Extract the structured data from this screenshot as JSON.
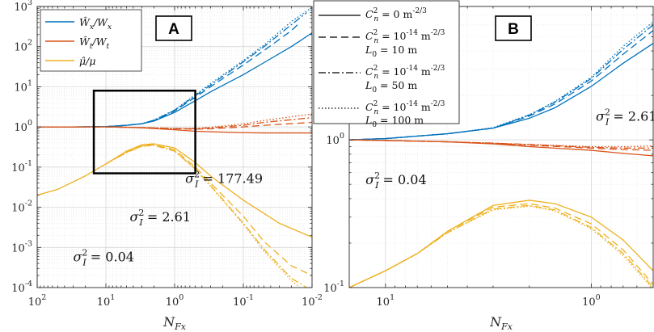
{
  "chart_data": [
    {
      "type": "line",
      "panel_label": "A",
      "xlabel": "N_Fx",
      "xlabel_main": "N",
      "xlabel_sub": "Fx",
      "x_scale": "log",
      "x_reversed": true,
      "xlim": [
        100,
        0.01
      ],
      "y_scale": "log",
      "ylim": [
        0.0001,
        1000
      ],
      "grid": true,
      "x_ticks": [
        {
          "value": 100,
          "base": "10",
          "exp": "2"
        },
        {
          "value": 10,
          "base": "10",
          "exp": "1"
        },
        {
          "value": 1,
          "base": "10",
          "exp": "0"
        },
        {
          "value": 0.1,
          "base": "10",
          "exp": "-1"
        },
        {
          "value": 0.01,
          "base": "10",
          "exp": "-2"
        }
      ],
      "y_ticks": [
        {
          "value": 0.0001,
          "base": "10",
          "exp": "-4"
        },
        {
          "value": 0.001,
          "base": "10",
          "exp": "-3"
        },
        {
          "value": 0.01,
          "base": "10",
          "exp": "-2"
        },
        {
          "value": 0.1,
          "base": "10",
          "exp": "-1"
        },
        {
          "value": 1,
          "base": "10",
          "exp": "0"
        },
        {
          "value": 10,
          "base": "10",
          "exp": "1"
        },
        {
          "value": 100,
          "base": "10",
          "exp": "2"
        },
        {
          "value": 1000,
          "base": "10",
          "exp": "3"
        }
      ],
      "legend": {
        "placement": "top-left",
        "entries": [
          {
            "main": "Ŵ",
            "sub": "x",
            "tail": "/W",
            "tail_sub": "x",
            "color": "#0072BD"
          },
          {
            "main": "Ŵ",
            "sub": "t",
            "tail": "/W",
            "tail_sub": "t",
            "color": "#D95319"
          },
          {
            "main": "μ̂/μ",
            "sub": "",
            "tail": "",
            "tail_sub": "",
            "color": "#EDB120"
          }
        ]
      },
      "annotations": [
        {
          "text": "= 177.49",
          "sym": "σ",
          "sub": "I",
          "sup": "2",
          "x": 0.7,
          "y": 0.04
        },
        {
          "text": "= 2.61",
          "sym": "σ",
          "sub": "I",
          "sup": "2",
          "x": 4.5,
          "y": 0.0045
        },
        {
          "text": "= 0.04",
          "sym": "σ",
          "sub": "I",
          "sup": "2",
          "x": 30,
          "y": 0.00045
        }
      ],
      "zoom_box": {
        "x": [
          15,
          0.5
        ],
        "y": [
          0.07,
          8
        ]
      },
      "series": [
        {
          "name": "Ŵx/Wx, C_n²=0",
          "color": "#0072BD",
          "dash": "solid",
          "x": [
            100,
            30,
            10,
            5,
            3,
            2,
            1,
            0.5,
            0.3,
            0.1,
            0.05,
            0.02,
            0.01
          ],
          "y": [
            1.0,
            1.0,
            1.02,
            1.1,
            1.2,
            1.4,
            2.3,
            4.5,
            7.5,
            20,
            40,
            100,
            220
          ]
        },
        {
          "name": "Ŵx/Wx, C_n²=1e-14, L0=10 m",
          "color": "#0072BD",
          "dash": "dashed",
          "x": [
            100,
            30,
            10,
            5,
            3,
            2,
            1,
            0.5,
            0.3,
            0.1,
            0.05,
            0.02,
            0.015
          ],
          "y": [
            1.0,
            1.0,
            1.02,
            1.1,
            1.2,
            1.45,
            2.5,
            5.5,
            10,
            35,
            80,
            250,
            400
          ]
        },
        {
          "name": "Ŵx/Wx, C_n²=1e-14, L0=50 m",
          "color": "#0072BD",
          "dash": "dashdot",
          "x": [
            100,
            30,
            10,
            5,
            3,
            2,
            1,
            0.5,
            0.3,
            0.1,
            0.05,
            0.02,
            0.012
          ],
          "y": [
            1.0,
            1.0,
            1.02,
            1.1,
            1.2,
            1.47,
            2.6,
            6.0,
            11,
            42,
            100,
            350,
            700
          ]
        },
        {
          "name": "Ŵx/Wx, C_n²=1e-14, L0=100 m",
          "color": "#0072BD",
          "dash": "dotted",
          "x": [
            100,
            30,
            10,
            5,
            3,
            2,
            1,
            0.5,
            0.3,
            0.1,
            0.05,
            0.02,
            0.01
          ],
          "y": [
            1.0,
            1.0,
            1.02,
            1.1,
            1.21,
            1.48,
            2.65,
            6.3,
            12,
            45,
            110,
            420,
            950
          ]
        },
        {
          "name": "Ŵt/Wt, C_n²=0",
          "color": "#D95319",
          "dash": "solid",
          "x": [
            100,
            10,
            5,
            3,
            1,
            0.5,
            0.1,
            0.05,
            0.01
          ],
          "y": [
            1.0,
            1.0,
            0.98,
            0.95,
            0.85,
            0.78,
            0.72,
            0.71,
            0.71
          ]
        },
        {
          "name": "Ŵt/Wt, C_n²=1e-14, L0=10 m",
          "color": "#D95319",
          "dash": "dashed",
          "x": [
            100,
            10,
            5,
            3,
            1,
            0.5,
            0.3,
            0.1,
            0.05,
            0.01
          ],
          "y": [
            1.0,
            1.0,
            0.98,
            0.96,
            0.9,
            0.88,
            0.9,
            1.0,
            1.1,
            1.3
          ]
        },
        {
          "name": "Ŵt/Wt, C_n²=1e-14, L0=50 m",
          "color": "#D95319",
          "dash": "dashdot",
          "x": [
            100,
            10,
            5,
            3,
            1,
            0.5,
            0.3,
            0.1,
            0.05,
            0.01
          ],
          "y": [
            1.0,
            1.0,
            0.98,
            0.96,
            0.91,
            0.9,
            0.95,
            1.1,
            1.3,
            1.7
          ]
        },
        {
          "name": "Ŵt/Wt, C_n²=1e-14, L0=100 m",
          "color": "#D95319",
          "dash": "dotted",
          "x": [
            100,
            10,
            5,
            3,
            1,
            0.5,
            0.3,
            0.1,
            0.05,
            0.01
          ],
          "y": [
            1.0,
            1.0,
            0.98,
            0.96,
            0.92,
            0.92,
            0.98,
            1.2,
            1.45,
            2.1
          ]
        },
        {
          "name": "μ̂/μ, C_n²=0",
          "color": "#EDB120",
          "dash": "solid",
          "x": [
            100,
            50,
            20,
            10,
            5,
            3,
            2,
            1,
            0.5,
            0.3,
            0.1,
            0.03,
            0.01
          ],
          "y": [
            0.02,
            0.028,
            0.06,
            0.12,
            0.25,
            0.36,
            0.38,
            0.3,
            0.13,
            0.06,
            0.015,
            0.004,
            0.0018
          ]
        },
        {
          "name": "μ̂/μ, C_n²=1e-14, L0=10 m",
          "color": "#EDB120",
          "dash": "dashed",
          "x": [
            10,
            5,
            3,
            2,
            1,
            0.5,
            0.3,
            0.1,
            0.05,
            0.02,
            0.01
          ],
          "y": [
            0.12,
            0.24,
            0.34,
            0.36,
            0.27,
            0.1,
            0.04,
            0.006,
            0.0014,
            0.00035,
            0.0002
          ]
        },
        {
          "name": "μ̂/μ, C_n²=1e-14, L0=50 m",
          "color": "#EDB120",
          "dash": "dashdot",
          "x": [
            10,
            5,
            3,
            2,
            1,
            0.5,
            0.3,
            0.1,
            0.05,
            0.02,
            0.012
          ],
          "y": [
            0.12,
            0.23,
            0.33,
            0.35,
            0.25,
            0.09,
            0.035,
            0.004,
            0.0009,
            0.00017,
            0.0001
          ]
        },
        {
          "name": "μ̂/μ, C_n²=1e-14, L0=100 m",
          "color": "#EDB120",
          "dash": "dotted",
          "x": [
            10,
            5,
            3,
            2,
            1,
            0.5,
            0.3,
            0.1,
            0.05,
            0.02,
            0.015
          ],
          "y": [
            0.12,
            0.23,
            0.33,
            0.35,
            0.25,
            0.088,
            0.033,
            0.0038,
            0.0008,
            0.00015,
            0.0001
          ]
        }
      ]
    },
    {
      "type": "line",
      "panel_label": "B",
      "xlabel": "N_Fx",
      "xlabel_main": "N",
      "xlabel_sub": "Fx",
      "x_scale": "log",
      "x_reversed": true,
      "xlim": [
        15,
        0.5
      ],
      "y_scale": "log",
      "ylim": [
        0.1,
        8
      ],
      "grid": true,
      "x_ticks": [
        {
          "value": 10,
          "base": "10",
          "exp": "1"
        },
        {
          "value": 1,
          "base": "10",
          "exp": "0"
        }
      ],
      "y_ticks": [
        {
          "value": 0.1,
          "base": "10",
          "exp": "-1"
        },
        {
          "value": 1,
          "base": "10",
          "exp": "0"
        }
      ],
      "legend": {
        "placement": "top-left",
        "entries": [
          {
            "label": "= 0 m",
            "lexp": "-2/3",
            "line2": "",
            "dash": "solid"
          },
          {
            "label": "= 10",
            "lexp": "-14",
            "unit": " m",
            "uexp": "-2/3",
            "line2": "= 10 m",
            "dash": "dashed"
          },
          {
            "label": "= 10",
            "lexp": "-14",
            "unit": " m",
            "uexp": "-2/3",
            "line2": "= 50 m",
            "dash": "dashdot"
          },
          {
            "label": "= 10",
            "lexp": "-14",
            "unit": " m",
            "uexp": "-2/3",
            "line2": "= 100 m",
            "dash": "dotted"
          }
        ]
      },
      "annotations": [
        {
          "text": "= 2.61",
          "sym": "σ",
          "sub": "I",
          "sup": "2",
          "x": 0.95,
          "y": 1.35
        },
        {
          "text": "= 0.04",
          "sym": "σ",
          "sub": "I",
          "sup": "2",
          "x": 12.5,
          "y": 0.5
        }
      ],
      "series": [
        {
          "name": "Ŵx/Wx, C_n²=0",
          "color": "#0072BD",
          "dash": "solid",
          "x": [
            15,
            10,
            5,
            3,
            2,
            1.5,
            1,
            0.7,
            0.5
          ],
          "y": [
            1.0,
            1.02,
            1.1,
            1.2,
            1.4,
            1.65,
            2.3,
            3.3,
            4.5
          ]
        },
        {
          "name": "Ŵx/Wx, L0=10 m",
          "color": "#0072BD",
          "dash": "dashed",
          "x": [
            15,
            10,
            5,
            3,
            2,
            1.5,
            1,
            0.7,
            0.5
          ],
          "y": [
            1.0,
            1.02,
            1.1,
            1.2,
            1.45,
            1.75,
            2.5,
            3.8,
            5.5
          ]
        },
        {
          "name": "Ŵx/Wx, L0=50 m",
          "color": "#0072BD",
          "dash": "dashdot",
          "x": [
            15,
            10,
            5,
            3,
            2,
            1.5,
            1,
            0.7,
            0.5
          ],
          "y": [
            1.0,
            1.02,
            1.1,
            1.2,
            1.47,
            1.8,
            2.6,
            4.1,
            6.0
          ]
        },
        {
          "name": "Ŵx/Wx, L0=100 m",
          "color": "#0072BD",
          "dash": "dotted",
          "x": [
            15,
            10,
            5,
            3,
            2,
            1.5,
            1,
            0.7,
            0.5
          ],
          "y": [
            1.0,
            1.02,
            1.1,
            1.21,
            1.48,
            1.82,
            2.65,
            4.3,
            6.3
          ]
        },
        {
          "name": "Ŵt/Wt, C_n²=0",
          "color": "#D95319",
          "dash": "solid",
          "x": [
            15,
            10,
            5,
            3,
            2,
            1,
            0.7,
            0.5
          ],
          "y": [
            1.0,
            0.99,
            0.97,
            0.94,
            0.9,
            0.85,
            0.81,
            0.78
          ]
        },
        {
          "name": "Ŵt/Wt, L0=10 m",
          "color": "#D95319",
          "dash": "dashed",
          "x": [
            15,
            10,
            5,
            3,
            2,
            1,
            0.7,
            0.5
          ],
          "y": [
            1.0,
            0.99,
            0.97,
            0.95,
            0.92,
            0.88,
            0.86,
            0.85
          ]
        },
        {
          "name": "Ŵt/Wt, L0=50 m",
          "color": "#D95319",
          "dash": "dashdot",
          "x": [
            15,
            10,
            5,
            3,
            2,
            1,
            0.7,
            0.5
          ],
          "y": [
            1.0,
            0.99,
            0.97,
            0.95,
            0.93,
            0.89,
            0.88,
            0.88
          ]
        },
        {
          "name": "Ŵt/Wt, L0=100 m",
          "color": "#D95319",
          "dash": "dotted",
          "x": [
            15,
            10,
            5,
            3,
            2,
            1,
            0.7,
            0.5
          ],
          "y": [
            1.0,
            0.99,
            0.97,
            0.95,
            0.93,
            0.9,
            0.9,
            0.91
          ]
        },
        {
          "name": "μ̂/μ, C_n²=0",
          "color": "#EDB120",
          "dash": "solid",
          "x": [
            15,
            10,
            7,
            5,
            3,
            2,
            1.5,
            1,
            0.7,
            0.5
          ],
          "y": [
            0.1,
            0.13,
            0.17,
            0.24,
            0.36,
            0.39,
            0.37,
            0.3,
            0.21,
            0.13
          ]
        },
        {
          "name": "μ̂/μ, L0=10 m",
          "color": "#EDB120",
          "dash": "dashed",
          "x": [
            15,
            10,
            7,
            5,
            3,
            2,
            1.5,
            1,
            0.7,
            0.5
          ],
          "y": [
            0.1,
            0.13,
            0.17,
            0.24,
            0.35,
            0.37,
            0.345,
            0.27,
            0.18,
            0.105
          ]
        },
        {
          "name": "μ̂/μ, L0=50 m",
          "color": "#EDB120",
          "dash": "dashdot",
          "x": [
            15,
            10,
            7,
            5,
            3,
            2,
            1.5,
            1,
            0.7,
            0.5
          ],
          "y": [
            0.1,
            0.13,
            0.17,
            0.235,
            0.34,
            0.36,
            0.335,
            0.255,
            0.17,
            0.1
          ]
        },
        {
          "name": "μ̂/μ, L0=100 m",
          "color": "#EDB120",
          "dash": "dotted",
          "x": [
            15,
            10,
            7,
            5,
            3,
            2,
            1.5,
            1,
            0.7,
            0.5
          ],
          "y": [
            0.1,
            0.13,
            0.17,
            0.235,
            0.335,
            0.355,
            0.33,
            0.25,
            0.165,
            0.097
          ]
        }
      ]
    }
  ],
  "legend_symbols": {
    "cn": "C",
    "cn_sub": "n",
    "cn_sup": "2",
    "l0": "L",
    "l0_sub": "0"
  }
}
